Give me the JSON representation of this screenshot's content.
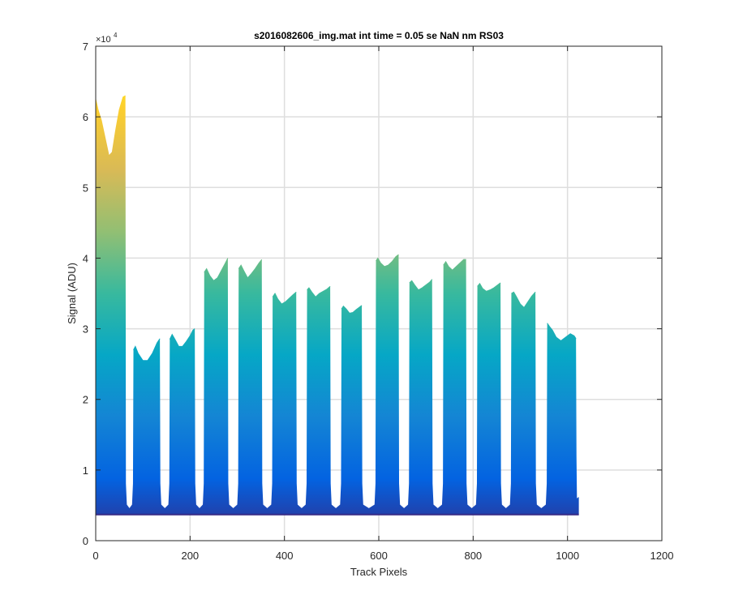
{
  "chart_data": {
    "type": "area",
    "title": "s2016082606_img.mat int time = 0.05 se  NaN nm RS03",
    "xlabel": "Track Pixels",
    "ylabel": "Signal (ADU)",
    "y_exponent_label": "×10",
    "y_exponent_power": "4",
    "xlim": [
      0,
      1200
    ],
    "ylim": [
      0,
      70000
    ],
    "x_ticks": [
      0,
      200,
      400,
      600,
      800,
      1000,
      1200
    ],
    "x_tick_labels": [
      "0",
      "200",
      "400",
      "600",
      "800",
      "1000",
      "1200"
    ],
    "y_ticks": [
      0,
      10000,
      20000,
      30000,
      40000,
      50000,
      60000,
      70000
    ],
    "y_tick_labels": [
      "0",
      "1",
      "2",
      "3",
      "4",
      "5",
      "6",
      "7"
    ],
    "grid": true,
    "colormap": [
      "#352a87",
      "#0363e1",
      "#1485d4",
      "#06a7c6",
      "#38b99e",
      "#92bf73",
      "#d9ba56",
      "#fcce2e",
      "#f9fb0e"
    ],
    "baseline": 3700,
    "x_end": 1024,
    "segments": [
      {
        "x": [
          0,
          5,
          12,
          20,
          28,
          35,
          42,
          50,
          58,
          63
        ],
        "y": [
          62500,
          61000,
          59500,
          57000,
          54500,
          55000,
          58000,
          61000,
          62800,
          63000
        ]
      },
      {
        "x": [
          80,
          84,
          90,
          100,
          110,
          120,
          130,
          136
        ],
        "y": [
          27000,
          27500,
          26500,
          25500,
          25500,
          26500,
          28000,
          28600
        ]
      },
      {
        "x": [
          157,
          162,
          168,
          176,
          184,
          192,
          200,
          206,
          210
        ],
        "y": [
          28500,
          29200,
          28500,
          27500,
          27500,
          28200,
          29000,
          29800,
          30000
        ]
      },
      {
        "x": [
          230,
          235,
          242,
          250,
          258,
          266,
          274,
          280
        ],
        "y": [
          38000,
          38500,
          37500,
          36800,
          37200,
          38200,
          39200,
          40000
        ]
      },
      {
        "x": [
          303,
          308,
          314,
          322,
          330,
          338,
          346,
          352
        ],
        "y": [
          38500,
          39000,
          38200,
          37200,
          37800,
          38500,
          39300,
          39800
        ]
      },
      {
        "x": [
          375,
          380,
          386,
          394,
          402,
          410,
          418,
          425
        ],
        "y": [
          34500,
          35000,
          34200,
          33500,
          33800,
          34300,
          34800,
          35200
        ]
      },
      {
        "x": [
          448,
          452,
          458,
          466,
          474,
          482,
          490,
          497
        ],
        "y": [
          35500,
          35800,
          35200,
          34500,
          35000,
          35300,
          35600,
          36000
        ]
      },
      {
        "x": [
          521,
          525,
          531,
          538,
          545,
          552,
          558,
          564
        ],
        "y": [
          32800,
          33200,
          32800,
          32200,
          32300,
          32700,
          33000,
          33300
        ]
      },
      {
        "x": [
          594,
          598,
          604,
          612,
          620,
          628,
          636,
          642
        ],
        "y": [
          39600,
          40000,
          39300,
          38800,
          39000,
          39500,
          40200,
          40500
        ]
      },
      {
        "x": [
          665,
          670,
          676,
          684,
          692,
          700,
          708,
          713
        ],
        "y": [
          36500,
          36800,
          36200,
          35500,
          35800,
          36200,
          36600,
          37000
        ]
      },
      {
        "x": [
          737,
          742,
          748,
          756,
          764,
          772,
          780,
          785
        ],
        "y": [
          39000,
          39500,
          38800,
          38300,
          38800,
          39300,
          39800,
          39800
        ]
      },
      {
        "x": [
          809,
          814,
          820,
          828,
          836,
          844,
          852,
          858
        ],
        "y": [
          36000,
          36400,
          35700,
          35300,
          35500,
          35800,
          36200,
          36500
        ]
      },
      {
        "x": [
          881,
          886,
          892,
          900,
          908,
          916,
          924,
          932
        ],
        "y": [
          35000,
          35200,
          34500,
          33500,
          33000,
          33800,
          34600,
          35200
        ]
      },
      {
        "x": [
          957,
          962,
          968,
          976,
          986,
          996,
          1006,
          1014,
          1018
        ],
        "y": [
          30800,
          30300,
          29800,
          28800,
          28300,
          28800,
          29300,
          29000,
          28600
        ]
      }
    ]
  }
}
